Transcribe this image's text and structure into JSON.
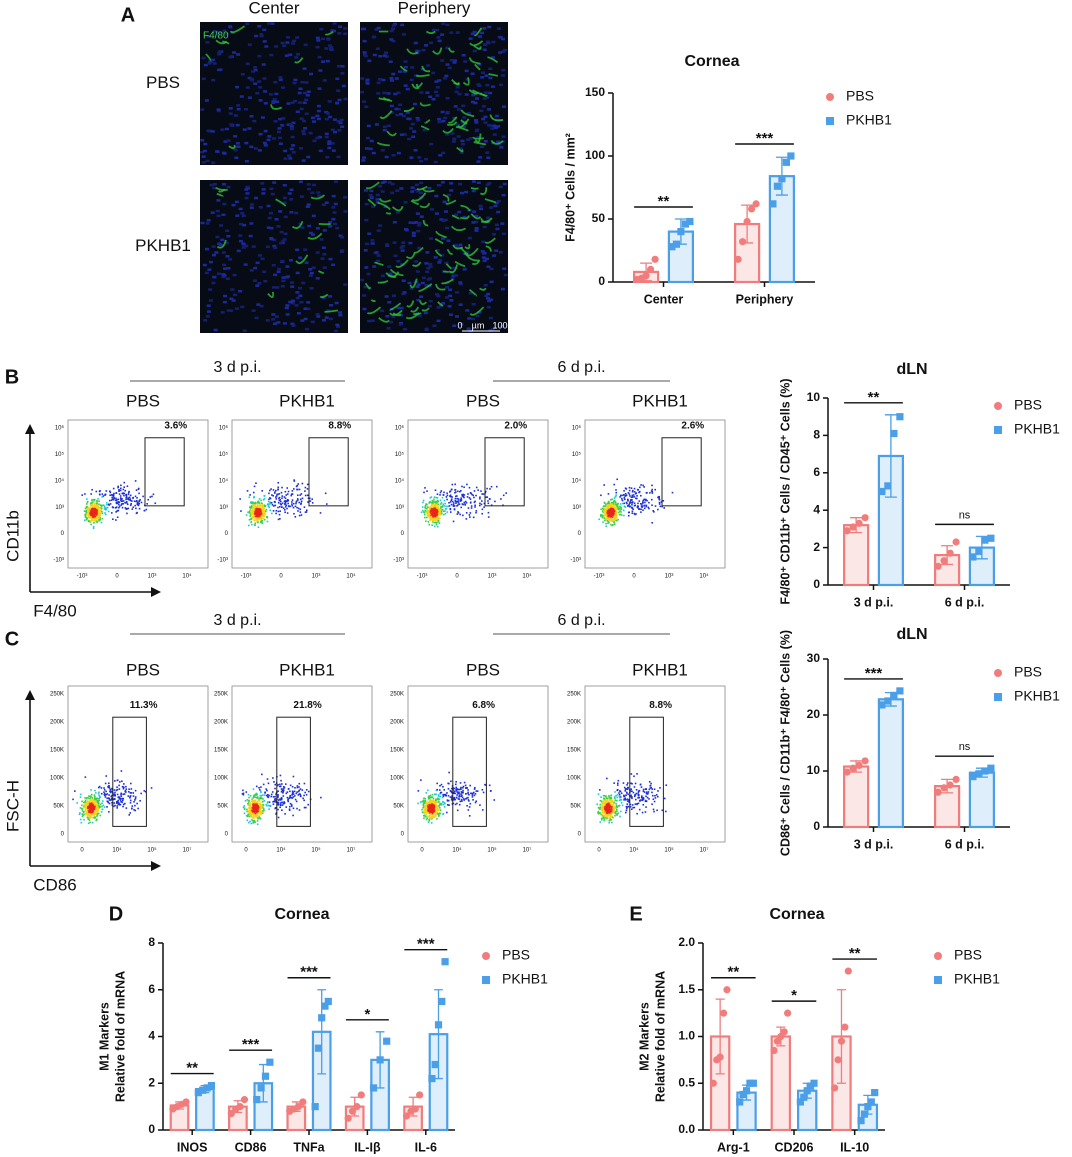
{
  "panels": [
    "A",
    "B",
    "C",
    "D",
    "E"
  ],
  "images": {
    "columns": [
      "Center",
      "Periphery"
    ],
    "rows": [
      "PBS",
      "PKHB1"
    ],
    "stain": "F4/80",
    "scale": [
      "0",
      "µm",
      "100"
    ]
  },
  "flow": [
    {
      "groups": [
        "3 d p.i.",
        "6 d p.i."
      ],
      "samples": [
        "PBS",
        "PKHB1",
        "PBS",
        "PKHB1"
      ],
      "gates": [
        "3.6%",
        "8.8%",
        "2.0%",
        "2.6%"
      ],
      "y_axis": "CD11b",
      "x_axis": "F4/80",
      "yticks": [
        "10⁶",
        "10⁵",
        "10⁴",
        "10³",
        "0",
        "-10³"
      ],
      "xticks": [
        "-10³",
        "0",
        "10³",
        "10⁴"
      ]
    },
    {
      "groups": [
        "3 d p.i.",
        "6 d p.i."
      ],
      "samples": [
        "PBS",
        "PKHB1",
        "PBS",
        "PKHB1"
      ],
      "gates": [
        "11.3%",
        "21.8%",
        "6.8%",
        "8.8%"
      ],
      "y_axis": "FSC-H",
      "x_axis": "CD86",
      "yticks": [
        "250K",
        "200K",
        "150K",
        "100K",
        "50K",
        "0"
      ],
      "xticks": [
        "0",
        "10⁴",
        "10⁵",
        "10⁷"
      ]
    }
  ],
  "chart_data": [
    {
      "type": "bar",
      "title": "Cornea",
      "ylabel": [
        "F4/80⁺ Cells / mm²"
      ],
      "categories": [
        "Center",
        "Periphery"
      ],
      "ylim": [
        0,
        150
      ],
      "yticks": [
        0,
        50,
        100,
        150
      ],
      "significance": [
        "**",
        "***"
      ],
      "series": [
        {
          "name": "PBS",
          "color": "#f07c7c",
          "marker": "circle",
          "values": [
            8,
            46
          ],
          "errors": [
            7,
            15
          ],
          "points": [
            [
              2,
              3,
              5,
              10,
              18
            ],
            [
              18,
              32,
              48,
              58,
              62
            ]
          ]
        },
        {
          "name": "PKHB1",
          "color": "#4a9fe8",
          "marker": "square",
          "values": [
            40,
            84
          ],
          "errors": [
            10,
            15
          ],
          "points": [
            [
              28,
              30,
              40,
              46,
              48
            ],
            [
              62,
              76,
              82,
              95,
              100
            ]
          ]
        }
      ]
    },
    {
      "type": "bar",
      "title": "dLN",
      "ylabel": [
        "F4/80⁺ CD11b⁺ Cells / CD45⁺ Cells (%)"
      ],
      "categories": [
        "3 d p.i.",
        "6 d p.i."
      ],
      "ylim": [
        0,
        10
      ],
      "yticks": [
        0,
        2,
        4,
        6,
        8,
        10
      ],
      "significance": [
        "**",
        "ns"
      ],
      "series": [
        {
          "name": "PBS",
          "color": "#f07c7c",
          "marker": "circle",
          "values": [
            3.2,
            1.6
          ],
          "errors": [
            0.4,
            0.5
          ],
          "points": [
            [
              2.9,
              3.1,
              3.3,
              3.6
            ],
            [
              1.0,
              1.3,
              1.7,
              2.3
            ]
          ]
        },
        {
          "name": "PKHB1",
          "color": "#4a9fe8",
          "marker": "square",
          "values": [
            6.9,
            2.0
          ],
          "errors": [
            2.2,
            0.6
          ],
          "points": [
            [
              5.0,
              5.3,
              8.1,
              9.0
            ],
            [
              1.5,
              1.8,
              2.4,
              2.5
            ]
          ]
        }
      ]
    },
    {
      "type": "bar",
      "title": "dLN",
      "ylabel": [
        "CD86⁺ Cells / CD11b⁺ F4/80⁺ Cells (%)"
      ],
      "categories": [
        "3 d p.i.",
        "6 d p.i."
      ],
      "ylim": [
        0,
        30
      ],
      "yticks": [
        0,
        10,
        20,
        30
      ],
      "significance": [
        "***",
        "ns"
      ],
      "series": [
        {
          "name": "PBS",
          "color": "#f07c7c",
          "marker": "circle",
          "values": [
            10.8,
            7.3
          ],
          "errors": [
            1.0,
            1.2
          ],
          "points": [
            [
              9.8,
              10.5,
              11.0,
              11.8
            ],
            [
              6.2,
              7.0,
              7.5,
              8.5
            ]
          ]
        },
        {
          "name": "PKHB1",
          "color": "#4a9fe8",
          "marker": "square",
          "values": [
            22.8,
            9.7
          ],
          "errors": [
            1.2,
            0.8
          ],
          "points": [
            [
              21.8,
              22.5,
              23.5,
              24.3
            ],
            [
              9.0,
              9.5,
              10.0,
              10.5
            ]
          ]
        }
      ]
    },
    {
      "type": "bar",
      "title": "Cornea",
      "ylabel": [
        "M1 Markers",
        "Relative fold of mRNA"
      ],
      "categories": [
        "INOS",
        "CD86",
        "TNFa",
        "IL-Iβ",
        "IL-6"
      ],
      "ylim": [
        0,
        8
      ],
      "yticks": [
        0,
        2,
        4,
        6,
        8
      ],
      "significance": [
        "**",
        "***",
        "***",
        "*",
        "***"
      ],
      "series": [
        {
          "name": "PBS",
          "color": "#f07c7c",
          "marker": "circle",
          "values": [
            1.05,
            1.0,
            1.0,
            1.0,
            1.0
          ],
          "errors": [
            0.15,
            0.25,
            0.2,
            0.4,
            0.4
          ],
          "points": [
            [
              0.9,
              1.0,
              1.1,
              1.2
            ],
            [
              0.7,
              0.9,
              1.0,
              1.3
            ],
            [
              0.8,
              0.9,
              1.0,
              1.2
            ],
            [
              0.5,
              0.8,
              1.0,
              1.5
            ],
            [
              0.6,
              0.8,
              0.9,
              1.5
            ]
          ]
        },
        {
          "name": "PKHB1",
          "color": "#4a9fe8",
          "marker": "square",
          "values": [
            1.75,
            2.0,
            4.2,
            3.0,
            4.1
          ],
          "errors": [
            0.15,
            0.8,
            1.8,
            1.2,
            1.9
          ],
          "points": [
            [
              1.6,
              1.7,
              1.8,
              1.9
            ],
            [
              1.3,
              1.8,
              2.3,
              2.9
            ],
            [
              1.0,
              3.5,
              4.8,
              5.3,
              5.5
            ],
            [
              1.8,
              3.0,
              3.8
            ],
            [
              2.2,
              2.8,
              4.5,
              5.5,
              7.2
            ]
          ]
        }
      ]
    },
    {
      "type": "bar",
      "title": "Cornea",
      "ylabel": [
        "M2 Markers",
        "Relative fold of mRNA"
      ],
      "categories": [
        "Arg-1",
        "CD206",
        "IL-10"
      ],
      "ylim": [
        0,
        2
      ],
      "yticks": [
        {
          "value": 0,
          "label": "0.0"
        },
        0.5,
        {
          "value": 1,
          "label": "1.0"
        },
        1.5,
        {
          "value": 2,
          "label": "2.0"
        }
      ],
      "significance": [
        "**",
        "*",
        "**"
      ],
      "series": [
        {
          "name": "PBS",
          "color": "#f07c7c",
          "marker": "circle",
          "values": [
            1.0,
            1.0,
            1.0
          ],
          "errors": [
            0.4,
            0.1,
            0.5
          ],
          "points": [
            [
              0.5,
              0.75,
              0.78,
              1.25,
              1.5
            ],
            [
              0.85,
              0.95,
              1.0,
              1.05,
              1.25
            ],
            [
              0.45,
              0.75,
              0.95,
              1.1,
              1.7
            ]
          ]
        },
        {
          "name": "PKHB1",
          "color": "#4a9fe8",
          "marker": "square",
          "values": [
            0.4,
            0.42,
            0.27
          ],
          "errors": [
            0.08,
            0.08,
            0.1
          ],
          "points": [
            [
              0.3,
              0.38,
              0.42,
              0.5,
              0.5
            ],
            [
              0.3,
              0.35,
              0.42,
              0.47,
              0.5
            ],
            [
              0.1,
              0.17,
              0.25,
              0.3,
              0.4
            ]
          ]
        }
      ]
    }
  ]
}
